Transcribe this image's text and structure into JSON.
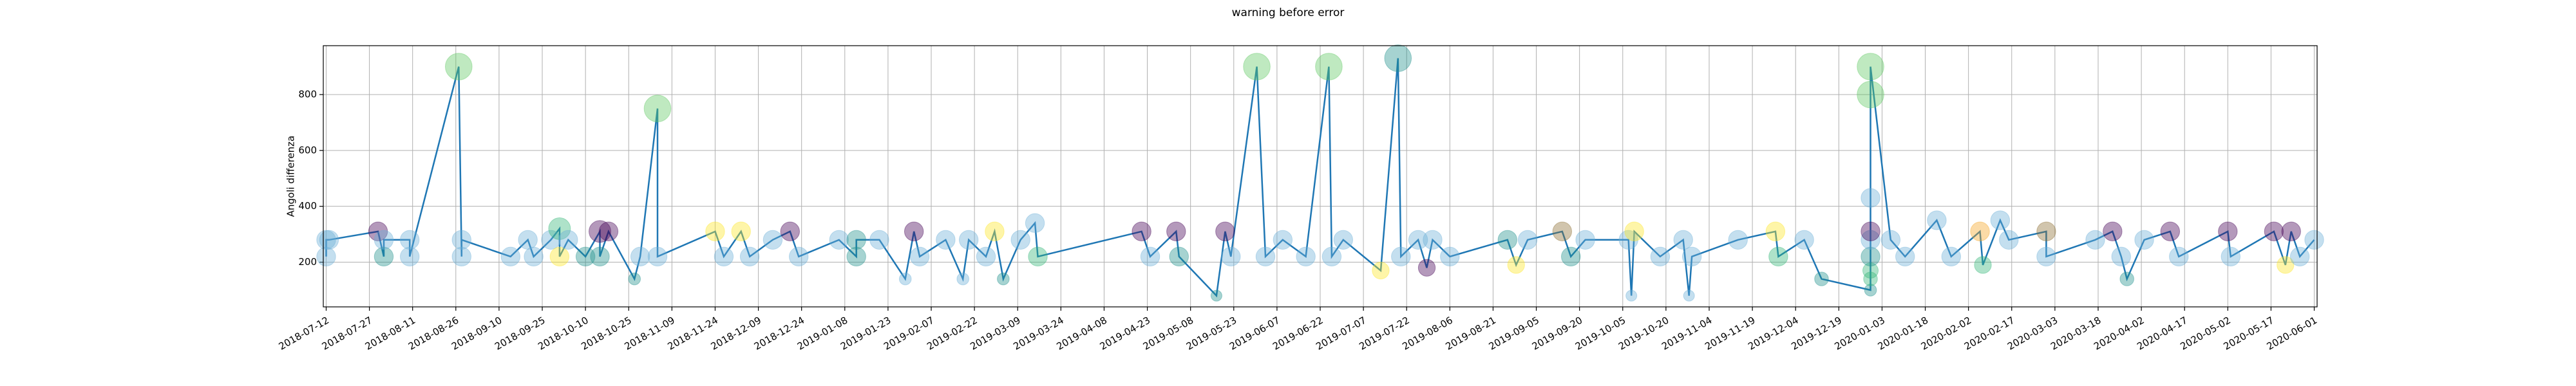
{
  "chart_data": {
    "type": "line",
    "title": "warning before error",
    "ylabel": "Angoli differenza",
    "x": [
      "2018-07-12",
      "2018-07-12",
      "2018-07-13",
      "2018-07-30",
      "2018-08-01",
      "2018-08-01",
      "2018-08-10",
      "2018-08-10",
      "2018-08-27",
      "2018-08-28",
      "2018-08-28",
      "2018-09-14",
      "2018-09-20",
      "2018-09-22",
      "2018-09-28",
      "2018-10-01",
      "2018-10-01",
      "2018-10-04",
      "2018-10-10",
      "2018-10-15",
      "2018-10-15",
      "2018-10-18",
      "2018-10-27",
      "2018-10-29",
      "2018-11-04",
      "2018-11-04",
      "2018-11-24",
      "2018-11-27",
      "2018-12-03",
      "2018-12-06",
      "2018-12-14",
      "2018-12-20",
      "2018-12-23",
      "2019-01-06",
      "2019-01-12",
      "2019-01-12",
      "2019-01-20",
      "2019-01-29",
      "2019-02-01",
      "2019-02-03",
      "2019-02-12",
      "2019-02-18",
      "2019-02-20",
      "2019-02-26",
      "2019-03-01",
      "2019-03-04",
      "2019-03-10",
      "2019-03-15",
      "2019-03-16",
      "2019-04-21",
      "2019-04-24",
      "2019-05-03",
      "2019-05-04",
      "2019-05-17",
      "2019-05-20",
      "2019-05-22",
      "2019-05-31",
      "2019-06-03",
      "2019-06-09",
      "2019-06-17",
      "2019-06-25",
      "2019-06-26",
      "2019-06-30",
      "2019-07-13",
      "2019-07-19",
      "2019-07-20",
      "2019-07-26",
      "2019-07-29",
      "2019-07-31",
      "2019-08-06",
      "2019-08-26",
      "2019-08-29",
      "2019-09-02",
      "2019-09-14",
      "2019-09-17",
      "2019-09-22",
      "2019-10-07",
      "2019-10-08",
      "2019-10-09",
      "2019-10-18",
      "2019-10-26",
      "2019-10-28",
      "2019-10-29",
      "2019-11-14",
      "2019-11-27",
      "2019-11-28",
      "2019-12-07",
      "2019-12-13",
      "2019-12-30",
      "2019-12-30",
      "2019-12-30",
      "2019-12-30",
      "2019-12-30",
      "2019-12-30",
      "2019-12-30",
      "2019-12-30",
      "2019-12-30",
      "2020-01-06",
      "2020-01-11",
      "2020-01-22",
      "2020-01-27",
      "2020-02-06",
      "2020-02-07",
      "2020-02-13",
      "2020-02-16",
      "2020-02-29",
      "2020-02-29",
      "2020-03-17",
      "2020-03-23",
      "2020-03-26",
      "2020-03-28",
      "2020-04-03",
      "2020-04-12",
      "2020-04-15",
      "2020-05-02",
      "2020-05-03",
      "2020-05-18",
      "2020-05-22",
      "2020-05-24",
      "2020-05-27",
      "2020-06-01"
    ],
    "values": [
      220,
      280,
      280,
      310,
      220,
      280,
      280,
      220,
      900,
      220,
      280,
      220,
      280,
      220,
      280,
      320,
      220,
      280,
      220,
      310,
      220,
      310,
      140,
      220,
      750,
      220,
      310,
      220,
      310,
      220,
      280,
      310,
      220,
      280,
      220,
      280,
      280,
      140,
      310,
      220,
      280,
      140,
      280,
      220,
      310,
      140,
      280,
      340,
      220,
      310,
      220,
      310,
      220,
      80,
      310,
      220,
      900,
      220,
      280,
      220,
      900,
      220,
      280,
      170,
      930,
      220,
      280,
      180,
      280,
      220,
      280,
      190,
      280,
      310,
      220,
      280,
      280,
      80,
      310,
      220,
      280,
      80,
      220,
      280,
      310,
      220,
      280,
      140,
      100,
      140,
      170,
      220,
      280,
      310,
      430,
      800,
      900,
      280,
      220,
      350,
      220,
      310,
      190,
      350,
      280,
      310,
      220,
      280,
      310,
      220,
      140,
      280,
      310,
      220,
      310,
      220,
      310,
      190,
      310,
      220,
      280
    ],
    "sizes": [
      150,
      150,
      150,
      150,
      150,
      150,
      150,
      150,
      300,
      150,
      150,
      150,
      150,
      150,
      150,
      200,
      150,
      150,
      150,
      200,
      150,
      150,
      60,
      150,
      300,
      150,
      150,
      150,
      150,
      150,
      150,
      150,
      150,
      150,
      150,
      150,
      150,
      60,
      150,
      150,
      150,
      60,
      150,
      150,
      150,
      60,
      150,
      150,
      150,
      150,
      150,
      150,
      150,
      50,
      150,
      150,
      300,
      150,
      150,
      150,
      300,
      150,
      150,
      120,
      300,
      150,
      150,
      120,
      150,
      150,
      150,
      120,
      150,
      150,
      150,
      150,
      150,
      50,
      150,
      150,
      150,
      50,
      150,
      150,
      150,
      150,
      150,
      80,
      60,
      80,
      100,
      150,
      150,
      150,
      150,
      300,
      300,
      150,
      150,
      150,
      150,
      150,
      120,
      150,
      150,
      150,
      150,
      150,
      150,
      150,
      80,
      150,
      150,
      150,
      150,
      150,
      150,
      120,
      150,
      150,
      150
    ],
    "marker_colors": [
      "#6baed6",
      "#6baed6",
      "#6baed6",
      "#440154",
      "#21918c",
      "#6baed6",
      "#6baed6",
      "#6baed6",
      "#5ec962",
      "#6baed6",
      "#6baed6",
      "#6baed6",
      "#6baed6",
      "#6baed6",
      "#6baed6",
      "#35b779",
      "#fde725",
      "#6baed6",
      "#21918c",
      "#440154",
      "#21918c",
      "#440154",
      "#21918c",
      "#6baed6",
      "#5ec962",
      "#6baed6",
      "#fde725",
      "#6baed6",
      "#fde725",
      "#6baed6",
      "#6baed6",
      "#440154",
      "#6baed6",
      "#6baed6",
      "#21918c",
      "#21918c",
      "#6baed6",
      "#6baed6",
      "#440154",
      "#6baed6",
      "#6baed6",
      "#6baed6",
      "#6baed6",
      "#6baed6",
      "#fde725",
      "#21918c",
      "#6baed6",
      "#6baed6",
      "#35b779",
      "#440154",
      "#6baed6",
      "#440154",
      "#21918c",
      "#21918c",
      "#440154",
      "#6baed6",
      "#5ec962",
      "#6baed6",
      "#6baed6",
      "#6baed6",
      "#5ec962",
      "#6baed6",
      "#6baed6",
      "#fde725",
      "#21918c",
      "#6baed6",
      "#6baed6",
      "#440154",
      "#6baed6",
      "#6baed6",
      "#21918c",
      "#fde725",
      "#6baed6",
      "#8c6d31",
      "#21918c",
      "#6baed6",
      "#6baed6",
      "#6baed6",
      "#fde725",
      "#6baed6",
      "#6baed6",
      "#6baed6",
      "#6baed6",
      "#6baed6",
      "#fde725",
      "#35b779",
      "#6baed6",
      "#21918c",
      "#21918c",
      "#35b779",
      "#35b779",
      "#21918c",
      "#6baed6",
      "#440154",
      "#6baed6",
      "#5ec962",
      "#5ec962",
      "#6baed6",
      "#6baed6",
      "#6baed6",
      "#6baed6",
      "#f5a623",
      "#35b779",
      "#6baed6",
      "#6baed6",
      "#8c6d31",
      "#6baed6",
      "#6baed6",
      "#440154",
      "#6baed6",
      "#21918c",
      "#6baed6",
      "#440154",
      "#6baed6",
      "#440154",
      "#6baed6",
      "#440154",
      "#fde725",
      "#440154",
      "#6baed6",
      "#6baed6"
    ],
    "marker_alpha": 0.4,
    "line_color": "#1f77b4",
    "xlim": [
      "2018-07-11",
      "2020-06-02"
    ],
    "xticks": [
      "2018-07-12",
      "2018-07-27",
      "2018-08-11",
      "2018-08-26",
      "2018-09-10",
      "2018-09-25",
      "2018-10-10",
      "2018-10-25",
      "2018-11-09",
      "2018-11-24",
      "2018-12-09",
      "2018-12-24",
      "2019-01-08",
      "2019-01-23",
      "2019-02-07",
      "2019-02-22",
      "2019-03-09",
      "2019-03-24",
      "2019-04-08",
      "2019-04-23",
      "2019-05-08",
      "2019-05-23",
      "2019-06-07",
      "2019-06-22",
      "2019-07-07",
      "2019-07-22",
      "2019-08-06",
      "2019-08-21",
      "2019-09-05",
      "2019-09-20",
      "2019-10-05",
      "2019-10-20",
      "2019-11-04",
      "2019-11-19",
      "2019-12-04",
      "2019-12-19",
      "2020-01-03",
      "2020-01-18",
      "2020-02-02",
      "2020-02-17",
      "2020-03-03",
      "2020-03-18",
      "2020-04-02",
      "2020-04-17",
      "2020-05-02",
      "2020-05-17",
      "2020-06-01"
    ],
    "ylim": [
      40,
      975
    ],
    "yticks": [
      200,
      400,
      600,
      800
    ],
    "grid": true
  }
}
